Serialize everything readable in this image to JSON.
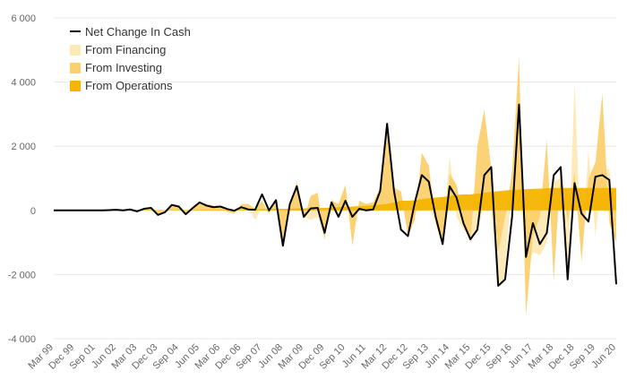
{
  "chart_data": {
    "type": "area",
    "title": "",
    "xlabel": "",
    "ylabel": "",
    "ylim": [
      -4000,
      6000
    ],
    "y_ticks": [
      -4000,
      -2000,
      0,
      2000,
      4000,
      6000
    ],
    "y_tick_labels": [
      "-4 000",
      "-2 000",
      "0",
      "2 000",
      "4 000",
      "6 000"
    ],
    "x_tick_labels": [
      "Mar 99",
      "Dec 99",
      "Sep 01",
      "Jun 02",
      "Mar 03",
      "Dec 03",
      "Sep 04",
      "Jun 05",
      "Mar 06",
      "Dec 06",
      "Sep 07",
      "Jun 08",
      "Mar 09",
      "Dec 09",
      "Sep 10",
      "Jun 11",
      "Mar 12",
      "Dec 12",
      "Sep 13",
      "Jun 14",
      "Mar 15",
      "Dec 15",
      "Sep 16",
      "Jun 17",
      "Mar 18",
      "Dec 18",
      "Sep 19",
      "Jun 20"
    ],
    "grid": true,
    "legend_position": "top-left",
    "colors": {
      "financing": "#fde9b4",
      "investing": "#fbd06e",
      "operations": "#f5b400",
      "net": "#000000"
    },
    "series": [
      {
        "name": "Net Change In Cash",
        "style": "line",
        "color_key": "net",
        "values": [
          0,
          0,
          0,
          0,
          0,
          0,
          0,
          0,
          10,
          20,
          0,
          30,
          -30,
          50,
          80,
          -140,
          -60,
          170,
          120,
          -120,
          70,
          250,
          150,
          100,
          120,
          40,
          -10,
          100,
          30,
          20,
          500,
          0,
          320,
          -1100,
          200,
          750,
          -200,
          60,
          80,
          -700,
          250,
          -200,
          300,
          -200,
          50,
          0,
          30,
          600,
          2700,
          600,
          -600,
          -800,
          250,
          1100,
          900,
          -200,
          -1050,
          750,
          400,
          -400,
          -900,
          -600,
          1100,
          1350,
          -2350,
          -2150,
          -200,
          3300,
          -1450,
          -400,
          -1050,
          -700,
          1100,
          1350,
          -2150,
          850,
          -100,
          -350,
          1050,
          1100,
          950,
          -2300
        ]
      },
      {
        "name": "From Financing",
        "style": "area",
        "color_key": "financing",
        "values": [
          0,
          0,
          0,
          0,
          0,
          0,
          0,
          0,
          0,
          0,
          0,
          20,
          -20,
          30,
          40,
          -100,
          -30,
          60,
          60,
          -100,
          40,
          100,
          60,
          20,
          40,
          -30,
          -80,
          100,
          60,
          -300,
          100,
          -100,
          250,
          -500,
          -100,
          250,
          -200,
          -300,
          -200,
          -900,
          350,
          150,
          600,
          -700,
          200,
          100,
          150,
          700,
          500,
          600,
          500,
          -700,
          -150,
          200,
          150,
          -400,
          -1000,
          1700,
          -200,
          -600,
          -800,
          -700,
          200,
          0,
          -2400,
          -2200,
          1200,
          1200,
          -1800,
          -1300,
          -1400,
          -1000,
          900,
          1000,
          -2200,
          4000,
          -1600,
          1900,
          -800,
          1200,
          1300,
          -700
        ]
      },
      {
        "name": "From Investing",
        "style": "area",
        "color_key": "investing",
        "values": [
          0,
          0,
          0,
          0,
          0,
          0,
          0,
          0,
          10,
          30,
          -10,
          50,
          -20,
          60,
          50,
          -100,
          -40,
          200,
          150,
          -150,
          80,
          250,
          200,
          150,
          150,
          -50,
          -100,
          200,
          200,
          50,
          300,
          -100,
          300,
          -1000,
          150,
          900,
          -300,
          450,
          550,
          -900,
          300,
          200,
          800,
          -1100,
          300,
          200,
          250,
          700,
          2500,
          700,
          600,
          -800,
          -300,
          1800,
          1400,
          -400,
          -1100,
          1150,
          800,
          -400,
          -1000,
          2000,
          3150,
          1300,
          -1300,
          -200,
          1200,
          4800,
          -3300,
          -800,
          -200,
          2200,
          -2200,
          1300,
          -400,
          1200,
          -1600,
          1000,
          1500,
          3650,
          -400,
          -1000
        ]
      },
      {
        "name": "From Operations",
        "style": "area",
        "color_key": "operations",
        "values": [
          0,
          0,
          0,
          0,
          0,
          0,
          0,
          0,
          5,
          10,
          5,
          10,
          10,
          10,
          15,
          10,
          10,
          15,
          15,
          10,
          15,
          20,
          20,
          20,
          20,
          25,
          25,
          25,
          30,
          30,
          40,
          40,
          50,
          50,
          50,
          60,
          60,
          70,
          70,
          80,
          90,
          100,
          110,
          120,
          130,
          140,
          160,
          180,
          200,
          250,
          300,
          300,
          320,
          350,
          380,
          400,
          420,
          450,
          480,
          500,
          500,
          520,
          550,
          580,
          600,
          620,
          640,
          650,
          660,
          670,
          680,
          690,
          700,
          700,
          700,
          700,
          700,
          700,
          700,
          700,
          700,
          700
        ]
      }
    ]
  }
}
